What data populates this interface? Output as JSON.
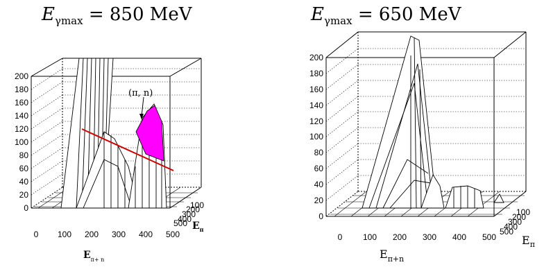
{
  "chart_data": [
    {
      "type": "surface3d",
      "panel": "left",
      "title": {
        "var": "E",
        "sub": "γmax",
        "rest": " = 850 MeV"
      },
      "z_ticks": [
        "0",
        "20",
        "40",
        "60",
        "80",
        "100",
        "120",
        "140",
        "160",
        "180",
        "200"
      ],
      "x_ticks": [
        "0",
        "100",
        "200",
        "300",
        "400",
        "500"
      ],
      "y_ticks": [
        "100",
        "200",
        "300",
        "400",
        "500"
      ],
      "xlabel": {
        "main": "E",
        "sub": "π+ n"
      },
      "ylabel": {
        "main": "E",
        "sub": "π"
      },
      "annotation": "(π, n)",
      "zlim": [
        0,
        200
      ],
      "colors": {
        "fill": "#ff00ff",
        "cut_line": "#cc0000"
      }
    },
    {
      "type": "surface3d",
      "panel": "right",
      "title": {
        "var": "E",
        "sub": "γmax",
        "rest": " = 650 MeV"
      },
      "z_ticks": [
        "0",
        "20",
        "40",
        "60",
        "80",
        "100",
        "120",
        "140",
        "160",
        "180",
        "200"
      ],
      "x_ticks": [
        "0",
        "100",
        "200",
        "300",
        "400",
        "500"
      ],
      "y_ticks": [
        "100",
        "200",
        "300",
        "400",
        "500"
      ],
      "xlabel": {
        "main": "E",
        "sub": "π+n"
      },
      "ylabel": {
        "main": "E",
        "sub": "π"
      },
      "zlim": [
        0,
        200
      ]
    }
  ]
}
